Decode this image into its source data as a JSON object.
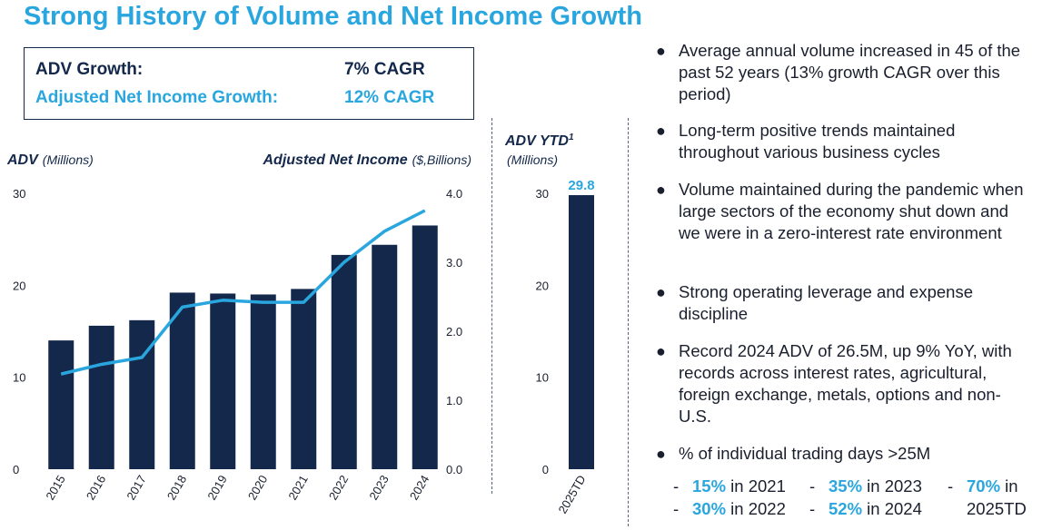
{
  "title": "Strong History of Volume and Net Income Growth",
  "growth_box": {
    "rows": [
      {
        "label": "ADV Growth:",
        "value": "7% CAGR"
      },
      {
        "label": "Adjusted Net Income Growth:",
        "value": "12% CAGR"
      }
    ]
  },
  "colors": {
    "navy": "#14284b",
    "accent": "#2aa6df"
  },
  "chart_data": [
    {
      "type": "bar",
      "title": "",
      "left_axis_label": {
        "main": "ADV",
        "sub": "(Millions)"
      },
      "right_axis_label": {
        "main": "Adjusted Net Income",
        "sub": "($,Billions)"
      },
      "categories": [
        "2015",
        "2016",
        "2017",
        "2018",
        "2019",
        "2020",
        "2021",
        "2022",
        "2023",
        "2024"
      ],
      "series": [
        {
          "name": "ADV",
          "type": "bar",
          "axis": "left",
          "values": [
            14.0,
            15.6,
            16.2,
            19.2,
            19.1,
            19.0,
            19.6,
            23.3,
            24.4,
            26.5
          ]
        },
        {
          "name": "Adjusted Net Income",
          "type": "line",
          "axis": "right",
          "values": [
            1.38,
            1.52,
            1.62,
            2.35,
            2.45,
            2.42,
            2.42,
            3.0,
            3.45,
            3.75
          ]
        }
      ],
      "ylim_left": [
        0,
        30
      ],
      "ylim_right": [
        0,
        4.0
      ],
      "left_ticks": [
        "0",
        "10",
        "20",
        "30"
      ],
      "right_ticks": [
        "0.0",
        "1.0",
        "2.0",
        "3.0",
        "4.0"
      ],
      "grid": false
    },
    {
      "type": "bar",
      "title": "",
      "axis_label": {
        "main": "ADV YTD",
        "sup": "1",
        "sub": "(Millions)"
      },
      "categories": [
        "2025TD"
      ],
      "values": [
        29.8
      ],
      "data_labels": [
        "29.8"
      ],
      "ylim": [
        0,
        30
      ],
      "ticks": [
        "0",
        "10",
        "20",
        "30"
      ],
      "grid": false
    }
  ],
  "bullets": [
    "Average annual volume increased in 45 of the past 52 years (13% growth CAGR over this period)",
    "Long-term positive trends maintained throughout various business cycles",
    "Volume maintained during the pandemic when large sectors of the economy shut down and we were in a zero-interest rate environment",
    "Strong operating leverage and expense discipline",
    "Record 2024 ADV of 26.5M, up 9% YoY, with records across interest rates, agricultural, foreign exchange, metals, options and non-U.S.",
    "% of individual trading days >25M"
  ],
  "bullet_marker": "●",
  "trading_days": [
    {
      "pct": "15%",
      "text": "in 2021"
    },
    {
      "pct": "30%",
      "text": "in 2022"
    },
    {
      "pct": "35%",
      "text": "in 2023"
    },
    {
      "pct": "52%",
      "text": "in 2024"
    },
    {
      "pct": "70%",
      "text": "in"
    },
    {
      "pct": "",
      "text": "2025TD"
    }
  ],
  "dash": "-"
}
